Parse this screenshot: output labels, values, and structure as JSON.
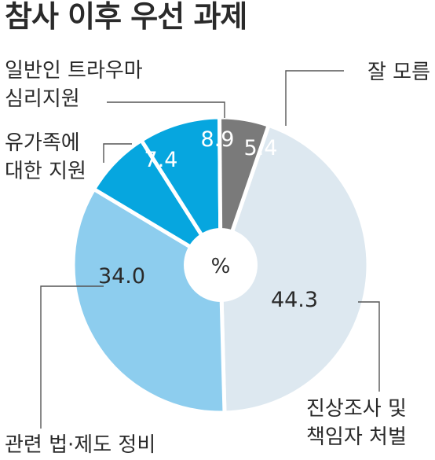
{
  "chart_data": {
    "type": "pie",
    "title": "참사 이후 우선 과제",
    "center_label": "%",
    "slices": [
      {
        "label_lines": [
          "진상조사 및",
          "책임자 처벌"
        ],
        "value": 44.3,
        "value_text": "44.3",
        "color": "#dde8f0",
        "value_color": "#2a2a2a"
      },
      {
        "label_lines": [
          "관련 법·제도 정비"
        ],
        "value": 34.0,
        "value_text": "34.0",
        "color": "#8dcdee",
        "value_color": "#2a2a2a"
      },
      {
        "label_lines": [
          "유가족에",
          "대한 지원"
        ],
        "value": 7.4,
        "value_text": "7.4",
        "color": "#06a6df",
        "value_color": "#ffffff"
      },
      {
        "label_lines": [
          "일반인 트라우마",
          "심리지원"
        ],
        "value": 8.9,
        "value_text": "8.9",
        "color": "#06a6df",
        "value_color": "#ffffff"
      },
      {
        "label_lines": [
          "잘 모름"
        ],
        "value": 5.4,
        "value_text": "5.4",
        "color": "#7a7a7a",
        "value_color": "#ffffff"
      }
    ]
  }
}
